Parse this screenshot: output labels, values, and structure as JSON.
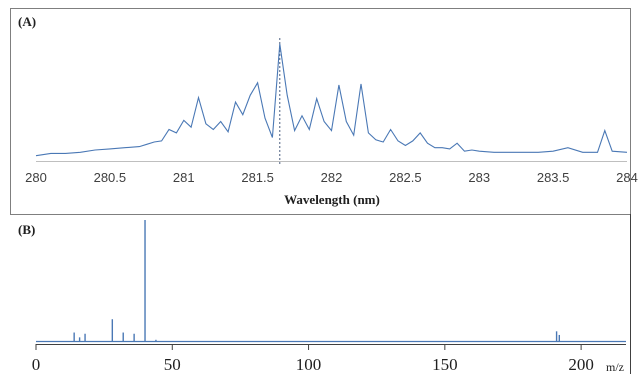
{
  "chart_data": [
    {
      "type": "line",
      "panel_label": "(A)",
      "title": "",
      "xlabel": "Wavelength (nm)",
      "ylabel": "",
      "xlim": [
        280,
        284
      ],
      "xticks": [
        "280",
        "280.5",
        "281",
        "281.5",
        "282",
        "282.5",
        "283",
        "283.5",
        "284"
      ],
      "marker_line_x": 281.65,
      "series": [
        {
          "color": "#4a78b5",
          "x": [
            280.0,
            280.1,
            280.2,
            280.3,
            280.4,
            280.5,
            280.6,
            280.7,
            280.75,
            280.8,
            280.85,
            280.9,
            280.95,
            281.0,
            281.05,
            281.1,
            281.15,
            281.2,
            281.25,
            281.3,
            281.35,
            281.4,
            281.45,
            281.5,
            281.55,
            281.6,
            281.65,
            281.7,
            281.75,
            281.8,
            281.85,
            281.9,
            281.95,
            282.0,
            282.05,
            282.1,
            282.15,
            282.2,
            282.25,
            282.3,
            282.35,
            282.4,
            282.45,
            282.5,
            282.55,
            282.6,
            282.65,
            282.7,
            282.75,
            282.8,
            282.85,
            282.9,
            282.95,
            283.0,
            283.1,
            283.2,
            283.3,
            283.4,
            283.5,
            283.6,
            283.7,
            283.8,
            283.85,
            283.9,
            284.0
          ],
          "y": [
            0.02,
            0.04,
            0.04,
            0.05,
            0.07,
            0.08,
            0.09,
            0.1,
            0.12,
            0.14,
            0.15,
            0.25,
            0.22,
            0.33,
            0.27,
            0.53,
            0.3,
            0.25,
            0.32,
            0.23,
            0.49,
            0.38,
            0.55,
            0.66,
            0.35,
            0.18,
            1.0,
            0.55,
            0.24,
            0.37,
            0.25,
            0.52,
            0.32,
            0.24,
            0.64,
            0.32,
            0.2,
            0.65,
            0.22,
            0.16,
            0.14,
            0.25,
            0.15,
            0.11,
            0.15,
            0.22,
            0.13,
            0.09,
            0.09,
            0.08,
            0.13,
            0.06,
            0.07,
            0.06,
            0.05,
            0.05,
            0.05,
            0.05,
            0.06,
            0.09,
            0.05,
            0.05,
            0.24,
            0.06,
            0.05
          ]
        }
      ]
    },
    {
      "type": "line",
      "panel_label": "(B)",
      "title": "",
      "xlabel": "m/z",
      "ylabel": "",
      "xlim": [
        0,
        215
      ],
      "xticks": [
        "0",
        "50",
        "100",
        "150",
        "200"
      ],
      "series": [
        {
          "color": "#4a78b5",
          "peaks": [
            {
              "x": 14,
              "y": 0.07
            },
            {
              "x": 16,
              "y": 0.03
            },
            {
              "x": 18,
              "y": 0.06
            },
            {
              "x": 28,
              "y": 0.18
            },
            {
              "x": 32,
              "y": 0.07
            },
            {
              "x": 36,
              "y": 0.06
            },
            {
              "x": 40,
              "y": 1.0
            },
            {
              "x": 44,
              "y": 0.01
            },
            {
              "x": 191,
              "y": 0.08
            },
            {
              "x": 192,
              "y": 0.05
            }
          ]
        }
      ]
    }
  ]
}
